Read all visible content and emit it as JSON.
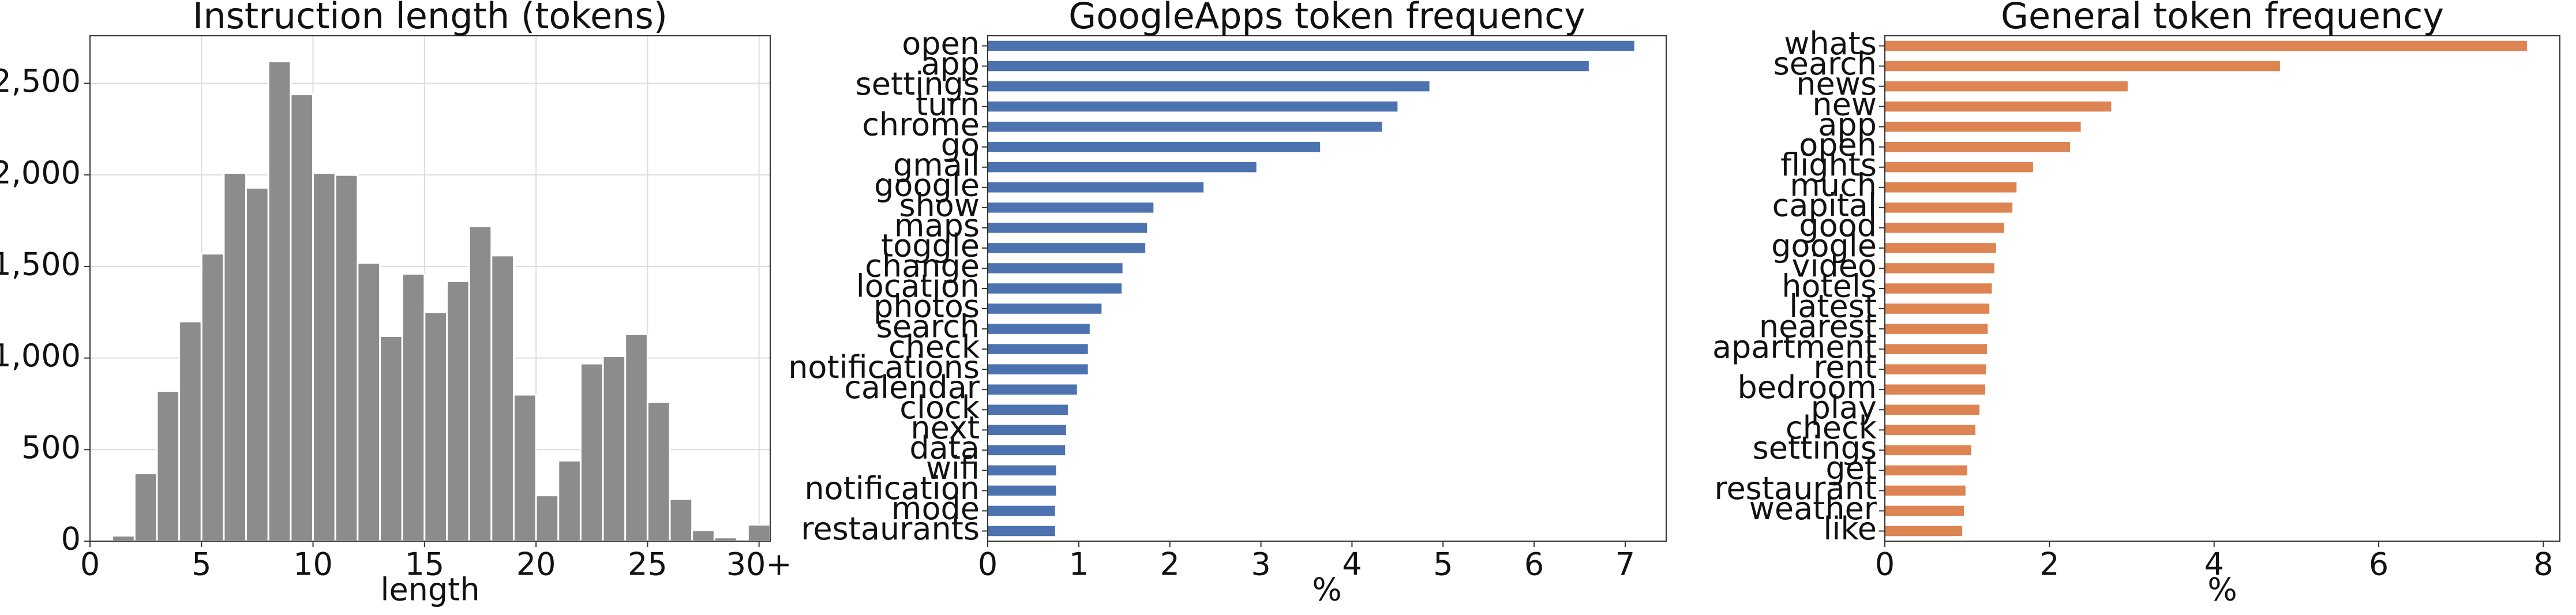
{
  "chart_data": [
    {
      "type": "histogram",
      "title": "Instruction length (tokens)",
      "xlabel": "length",
      "bins": [
        1,
        2,
        3,
        4,
        5,
        6,
        7,
        8,
        9,
        10,
        11,
        12,
        13,
        14,
        15,
        16,
        17,
        18,
        19,
        20,
        21,
        22,
        23,
        24,
        25,
        26,
        27,
        28,
        29,
        29.5,
        30.5
      ],
      "values": [
        30,
        370,
        820,
        1200,
        1570,
        2010,
        1930,
        2620,
        2440,
        2010,
        2000,
        1520,
        1120,
        1460,
        1250,
        1420,
        1720,
        1560,
        800,
        250,
        440,
        970,
        1010,
        1130,
        760,
        230,
        60,
        20,
        0,
        90
      ],
      "color": "#8c8c8c",
      "xlim": [
        0,
        30.5
      ],
      "ylim": [
        0,
        2760
      ],
      "xticks": [
        0,
        5,
        10,
        15,
        20,
        25,
        {
          "value": 30,
          "label": "30+"
        }
      ],
      "yticks": [
        0,
        500,
        {
          "value": 1000,
          "label": "1,000"
        },
        {
          "value": 1500,
          "label": "1,500"
        },
        {
          "value": 2000,
          "label": "2,000"
        },
        {
          "value": 2500,
          "label": "2,500"
        }
      ],
      "grid": true
    },
    {
      "type": "barh",
      "title": "GoogleApps token frequency",
      "xlabel": "%",
      "categories": [
        "open",
        "app",
        "settings",
        "turn",
        "chrome",
        "go",
        "gmail",
        "google",
        "show",
        "maps",
        "toggle",
        "change",
        "location",
        "photos",
        "search",
        "check",
        "notifications",
        "calendar",
        "clock",
        "next",
        "data",
        "wifi",
        "notification",
        "mode",
        "restaurants"
      ],
      "values": [
        7.1,
        6.6,
        4.85,
        4.5,
        4.33,
        3.65,
        2.95,
        2.37,
        1.82,
        1.75,
        1.73,
        1.48,
        1.47,
        1.25,
        1.12,
        1.1,
        1.1,
        0.98,
        0.88,
        0.86,
        0.85,
        0.75,
        0.75,
        0.74,
        0.74
      ],
      "color": "#4c72b0",
      "xlim": [
        0,
        7.45
      ],
      "xticks": [
        0,
        1,
        2,
        3,
        4,
        5,
        6,
        7
      ],
      "grid": false
    },
    {
      "type": "barh",
      "title": "General token frequency",
      "xlabel": "%",
      "categories": [
        "whats",
        "search",
        "news",
        "new",
        "app",
        "open",
        "flights",
        "much",
        "capital",
        "good",
        "google",
        "video",
        "hotels",
        "latest",
        "nearest",
        "apartment",
        "rent",
        "bedroom",
        "play",
        "check",
        "settings",
        "get",
        "restaurant",
        "weather",
        "like"
      ],
      "values": [
        7.8,
        4.8,
        2.95,
        2.75,
        2.38,
        2.25,
        1.8,
        1.6,
        1.55,
        1.45,
        1.35,
        1.33,
        1.3,
        1.27,
        1.25,
        1.24,
        1.23,
        1.22,
        1.15,
        1.1,
        1.05,
        1.0,
        0.98,
        0.96,
        0.94
      ],
      "color": "#dd8452",
      "xlim": [
        0,
        8.2
      ],
      "xticks": [
        0,
        2,
        4,
        6,
        8
      ],
      "grid": false
    }
  ]
}
